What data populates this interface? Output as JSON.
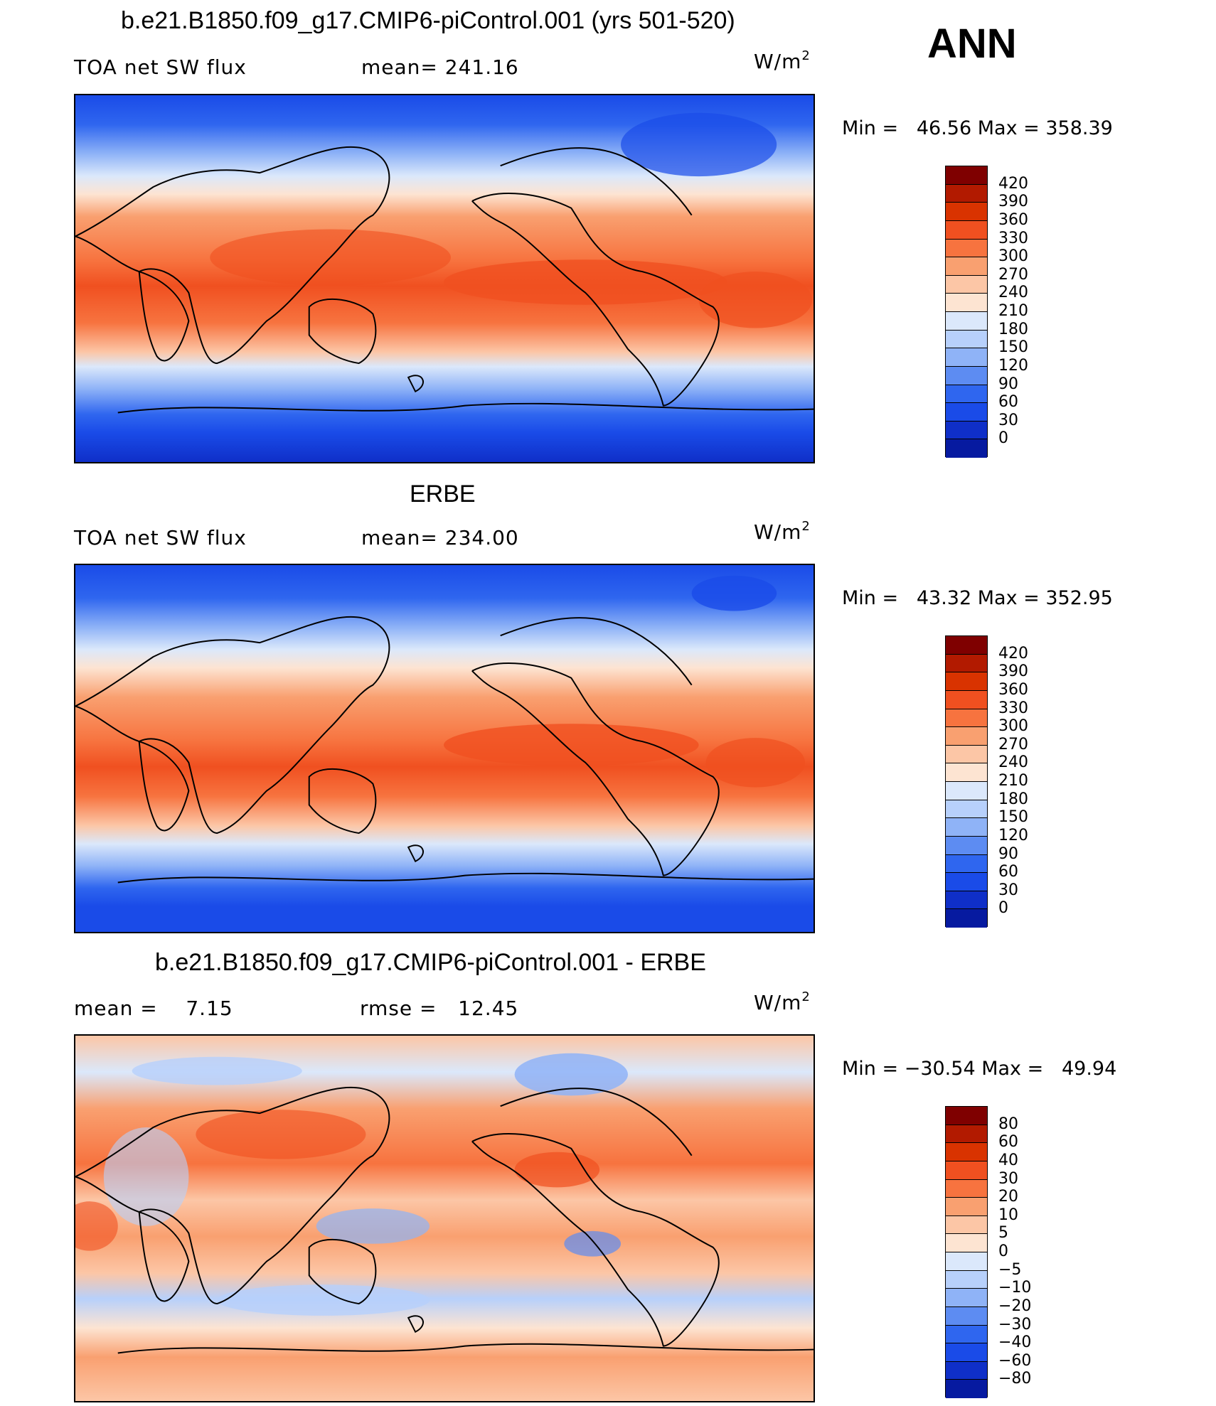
{
  "season": "ANN",
  "panels": [
    {
      "title": "b.e21.B1850.f09_g17.CMIP6-piControl.001 (yrs 501-520)",
      "left_text": "TOA net SW flux",
      "mid_text": "mean= 241.16",
      "units": "W/m",
      "units_sup": "2",
      "minmax": "Min =   46.56 Max = 358.39"
    },
    {
      "title": "ERBE",
      "left_text": "TOA net SW flux",
      "mid_text": "mean= 234.00",
      "units": "W/m",
      "units_sup": "2",
      "minmax": "Min =   43.32 Max = 352.95"
    },
    {
      "title": "b.e21.B1850.f09_g17.CMIP6-piControl.001 - ERBE",
      "left_text": "mean =    7.15",
      "mid_text": "rmse =   12.45",
      "units": "W/m",
      "units_sup": "2",
      "minmax": "Min = −30.54 Max =   49.94"
    }
  ],
  "colorbars": [
    {
      "labels": [
        "420",
        "390",
        "360",
        "330",
        "300",
        "270",
        "240",
        "210",
        "180",
        "150",
        "120",
        "90",
        "60",
        "30",
        "0"
      ],
      "colors": [
        "#7f0000",
        "#b21a00",
        "#d93300",
        "#f05020",
        "#f7733f",
        "#f9a070",
        "#fcc6a6",
        "#fde4d2",
        "#dbe8fb",
        "#b7d0fb",
        "#8fb3f7",
        "#5d8cf2",
        "#2f66ef",
        "#1a4be8",
        "#0f2fc8",
        "#061aa0"
      ]
    },
    {
      "labels": [
        "420",
        "390",
        "360",
        "330",
        "300",
        "270",
        "240",
        "210",
        "180",
        "150",
        "120",
        "90",
        "60",
        "30",
        "0"
      ],
      "colors": [
        "#7f0000",
        "#b21a00",
        "#d93300",
        "#f05020",
        "#f7733f",
        "#f9a070",
        "#fcc6a6",
        "#fde4d2",
        "#dbe8fb",
        "#b7d0fb",
        "#8fb3f7",
        "#5d8cf2",
        "#2f66ef",
        "#1a4be8",
        "#0f2fc8",
        "#061aa0"
      ]
    },
    {
      "labels": [
        "80",
        "60",
        "40",
        "30",
        "20",
        "10",
        "5",
        "0",
        "−5",
        "−10",
        "−20",
        "−30",
        "−40",
        "−60",
        "−80"
      ],
      "colors": [
        "#7f0000",
        "#b21a00",
        "#d93300",
        "#f05020",
        "#f7733f",
        "#f9a070",
        "#fcc6a6",
        "#fde4d2",
        "#dbe8fb",
        "#b7d0fb",
        "#8fb3f7",
        "#5d8cf2",
        "#2f66ef",
        "#1a4be8",
        "#0f2fc8",
        "#061aa0"
      ]
    }
  ]
}
